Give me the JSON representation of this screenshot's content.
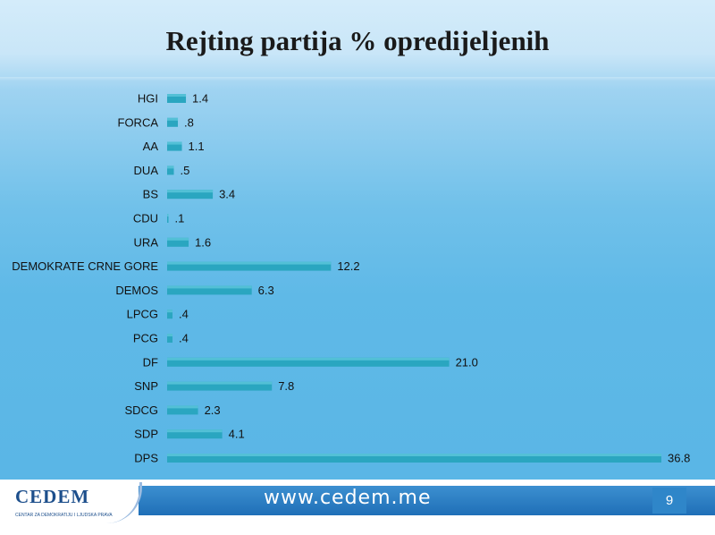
{
  "title": "Rejting partija % opredijeljenih",
  "footer": {
    "url": "www.cedem.me",
    "page_number": "9",
    "logo_text": "CEDEM",
    "logo_subtitle": "CENTAR ZA DEMOKRATIJU I LJUDSKA PRAVA"
  },
  "colors": {
    "bar": "#2aa6c0",
    "background": "#5fb9e7",
    "footer_band": "#1f6fb7"
  },
  "chart_data": {
    "type": "bar",
    "orientation": "horizontal",
    "title": "Rejting partija % opredijeljenih",
    "categories": [
      "HGI",
      "FORCA",
      "AA",
      "DUA",
      "BS",
      "CDU",
      "URA",
      "DEMOKRATE CRNE GORE",
      "DEMOS",
      "LPCG",
      "PCG",
      "DF",
      "SNP",
      "SDCG",
      "SDP",
      "DPS"
    ],
    "values": [
      1.4,
      0.8,
      1.1,
      0.5,
      3.4,
      0.1,
      1.6,
      12.2,
      6.3,
      0.4,
      0.4,
      21.0,
      7.8,
      2.3,
      4.1,
      36.8
    ],
    "value_labels": [
      "1.4",
      ".8",
      "1.1",
      ".5",
      "3.4",
      ".1",
      "1.6",
      "12.2",
      "6.3",
      ".4",
      ".4",
      "21.0",
      "7.8",
      "2.3",
      "4.1",
      "36.8"
    ],
    "xlim": [
      0,
      36.8
    ],
    "grid": false,
    "legend": "none"
  }
}
